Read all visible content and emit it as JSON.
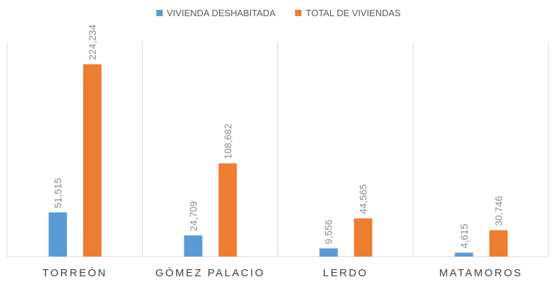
{
  "chart_data": {
    "type": "bar",
    "categories": [
      "TORREÓN",
      "GÓMEZ PALACIO",
      "LERDO",
      "MATAMOROS"
    ],
    "series": [
      {
        "name": "VIVIENDA DESHABITADA",
        "color": "#5B9BD5",
        "values": [
          51515,
          24709,
          9556,
          4615
        ],
        "labels": [
          "51,515",
          "24,709",
          "9,556",
          "4,615"
        ]
      },
      {
        "name": "TOTAL DE VIVIENDAS",
        "color": "#ED7D31",
        "values": [
          224234,
          108682,
          44565,
          30746
        ],
        "labels": [
          "224,234",
          "108,682",
          "44,565",
          "30,746"
        ]
      }
    ],
    "title": "",
    "xlabel": "",
    "ylabel": "",
    "ylim": [
      0,
      250000
    ],
    "legend": "top-center",
    "grid": "vertical separators"
  }
}
